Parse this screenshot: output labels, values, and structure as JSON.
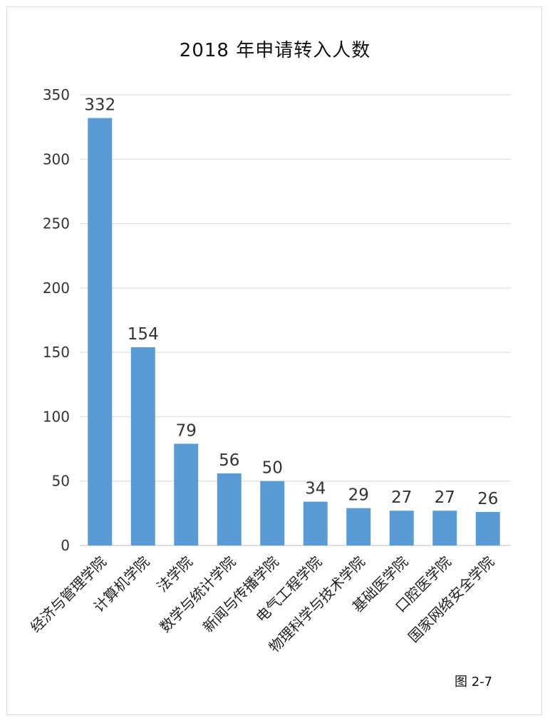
{
  "chart_data": {
    "type": "bar",
    "title": "2018 年申请转入人数",
    "categories": [
      "经济与管理学院",
      "计算机学院",
      "法学院",
      "数学与统计学院",
      "新闻与传播学院",
      "电气工程学院",
      "物理科学与技术学院",
      "基础医学院",
      "口腔医学院",
      "国家网络安全学院"
    ],
    "values": [
      332,
      154,
      79,
      56,
      50,
      34,
      29,
      27,
      27,
      26
    ],
    "ylim": [
      0,
      350
    ],
    "yticks": [
      0,
      50,
      100,
      150,
      200,
      250,
      300,
      350
    ],
    "grid": true,
    "legend": "none",
    "bar_color": "#5B9BD5",
    "data_labels": true
  },
  "caption": "图 2-7"
}
